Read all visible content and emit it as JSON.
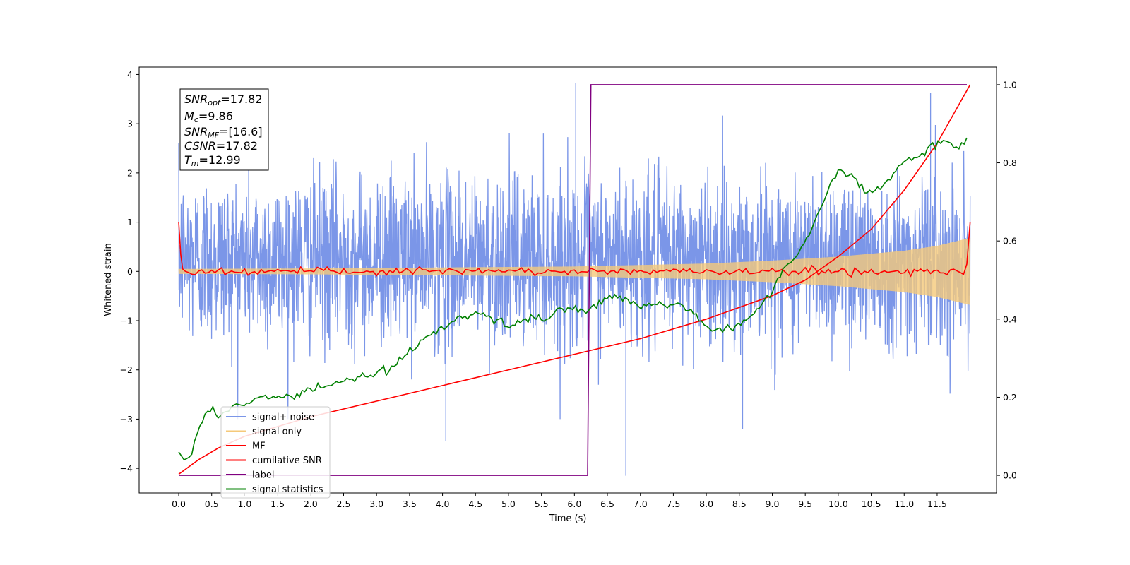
{
  "chart_data": {
    "type": "line",
    "xlabel": "Time (s)",
    "ylabel": "Whitened strain",
    "x_ticks": [
      "0.0",
      "0.5",
      "1.0",
      "1.5",
      "2.0",
      "2.5",
      "3.0",
      "3.5",
      "4.0",
      "4.5",
      "5.0",
      "5.5",
      "6.0",
      "6.5",
      "7.0",
      "7.5",
      "8.0",
      "8.5",
      "9.0",
      "9.5",
      "10.0",
      "10.5",
      "11.0",
      "11.5"
    ],
    "y_ticks": [
      "4",
      "3",
      "2",
      "1",
      "0",
      "−1",
      "−2",
      "−3",
      "−4"
    ],
    "y2_ticks": [
      "1.0",
      "0.8",
      "0.6",
      "0.4",
      "0.2",
      "0.0"
    ],
    "xlim": [
      -0.6,
      12.4
    ],
    "ylim": [
      -4.5,
      4.15
    ],
    "y2lim": [
      -0.045,
      1.045
    ],
    "legend_position": "lower-left",
    "info_box": {
      "snr_opt": {
        "base": "SNR",
        "sub": "opt",
        "value": "=17.82"
      },
      "mc": {
        "base": "M",
        "sub": "c",
        "value": "=9.86"
      },
      "snr_mf": {
        "base": "SNR",
        "sub": "MF",
        "value": "=[16.6]"
      },
      "csnr": {
        "base": "CSNR",
        "sub": "",
        "value": "=17.82"
      },
      "tm": {
        "base": "T",
        "sub": "m",
        "value": "=12.99"
      }
    },
    "series": [
      {
        "name": "signal+ noise",
        "color": "#7b96e8",
        "axis": "left",
        "description_values": {
          "t_start": 0.0,
          "t_end": 12.0,
          "mean": 0.25,
          "std": 0.85,
          "max": 3.82,
          "min": -4.15
        }
      },
      {
        "name": "signal only",
        "color": "#f5c97a",
        "axis": "left",
        "envelope": {
          "t": [
            0,
            2,
            4,
            6,
            8,
            9,
            10,
            11,
            11.5,
            12
          ],
          "amp": [
            0.05,
            0.06,
            0.08,
            0.1,
            0.16,
            0.22,
            0.3,
            0.42,
            0.52,
            0.68
          ]
        }
      },
      {
        "name": "MF",
        "color": "#ff0000",
        "axis": "left",
        "values": [
          [
            0.0,
            1.0
          ],
          [
            0.05,
            0.1
          ],
          [
            0.5,
            0.0
          ],
          [
            12.0,
            0.0
          ],
          [
            12.0,
            1.0
          ]
        ]
      },
      {
        "name": "cumilative SNR",
        "color": "#ff0000",
        "axis": "right",
        "x": [
          0.0,
          0.3,
          0.6,
          1.0,
          2.0,
          3.0,
          4.0,
          5.0,
          6.0,
          7.0,
          8.0,
          8.5,
          9.0,
          9.5,
          10.0,
          10.5,
          11.0,
          11.5,
          12.0
        ],
        "y": [
          0.003,
          0.04,
          0.07,
          0.1,
          0.15,
          0.19,
          0.23,
          0.27,
          0.31,
          0.35,
          0.4,
          0.43,
          0.46,
          0.5,
          0.56,
          0.63,
          0.73,
          0.85,
          1.0
        ]
      },
      {
        "name": "label",
        "color": "#800080",
        "axis": "right",
        "x": [
          0.0,
          6.2,
          6.25,
          11.95
        ],
        "y": [
          0.0,
          0.0,
          1.0,
          1.0
        ]
      },
      {
        "name": "signal statistics",
        "color": "#008000",
        "axis": "right",
        "x": [
          0.0,
          0.1,
          0.2,
          0.3,
          0.4,
          0.5,
          0.7,
          0.8,
          1.0,
          1.2,
          1.4,
          1.6,
          1.8,
          2.0,
          2.2,
          2.4,
          2.6,
          2.8,
          3.0,
          3.2,
          3.4,
          3.6,
          3.8,
          4.0,
          4.2,
          4.4,
          4.6,
          4.8,
          5.0,
          5.2,
          5.4,
          5.6,
          5.8,
          6.0,
          6.2,
          6.4,
          6.6,
          6.8,
          7.0,
          7.2,
          7.4,
          7.6,
          7.8,
          8.0,
          8.2,
          8.4,
          8.6,
          8.8,
          9.0,
          9.2,
          9.4,
          9.6,
          9.8,
          10.0,
          10.2,
          10.4,
          10.6,
          10.8,
          11.0,
          11.2,
          11.4,
          11.6,
          11.8,
          11.95
        ],
        "y": [
          0.06,
          0.035,
          0.06,
          0.12,
          0.16,
          0.165,
          0.16,
          0.17,
          0.18,
          0.2,
          0.205,
          0.2,
          0.21,
          0.22,
          0.23,
          0.24,
          0.25,
          0.25,
          0.26,
          0.27,
          0.3,
          0.33,
          0.36,
          0.38,
          0.4,
          0.41,
          0.42,
          0.4,
          0.38,
          0.39,
          0.41,
          0.4,
          0.42,
          0.43,
          0.42,
          0.44,
          0.46,
          0.45,
          0.43,
          0.44,
          0.43,
          0.44,
          0.42,
          0.38,
          0.37,
          0.38,
          0.4,
          0.43,
          0.47,
          0.54,
          0.57,
          0.63,
          0.71,
          0.78,
          0.77,
          0.72,
          0.74,
          0.76,
          0.8,
          0.82,
          0.84,
          0.86,
          0.84,
          0.86
        ]
      }
    ]
  }
}
